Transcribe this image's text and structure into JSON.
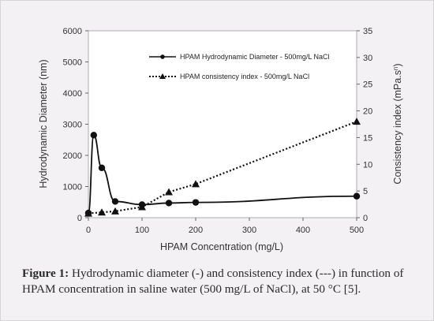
{
  "chart_data": {
    "type": "line",
    "xlabel": "HPAM Concentration (mg/L)",
    "ylabel": "Hydrodynamic Diameter (nm)",
    "y2label": "Consistency index  (mPa.s",
    "y2label_sup": "n",
    "y2label_close": ")",
    "x_ticks": [
      "0",
      "100",
      "200",
      "300",
      "400",
      "500"
    ],
    "y_ticks": [
      "0",
      "1000",
      "2000",
      "3000",
      "4000",
      "5000",
      "6000"
    ],
    "y2_ticks": [
      "0",
      "5",
      "10",
      "15",
      "20",
      "25",
      "30",
      "35"
    ],
    "ylim": [
      0,
      6000
    ],
    "y2lim": [
      0,
      35
    ],
    "x_axis_note": "x axis is categorical-like: 0,10,25,50,100,150,200,500 placed on a compressed scale",
    "legend_position": "top-right",
    "series": [
      {
        "name": "HPAM Hydrodynamic Diameter - 500mg/L NaCl",
        "axis": "left",
        "style": "solid",
        "marker": "circle",
        "points": [
          {
            "x": 0,
            "y": 150
          },
          {
            "x": 10,
            "y": 2650
          },
          {
            "x": 25,
            "y": 1600
          },
          {
            "x": 50,
            "y": 520
          },
          {
            "x": 100,
            "y": 420
          },
          {
            "x": 150,
            "y": 470
          },
          {
            "x": 200,
            "y": 490
          },
          {
            "x": 500,
            "y": 690
          }
        ]
      },
      {
        "name": "HPAM consistency index - 500mg/L NaCl",
        "axis": "right",
        "style": "dotted",
        "marker": "triangle",
        "points": [
          {
            "x": 0,
            "y": 0.8
          },
          {
            "x": 25,
            "y": 1.0
          },
          {
            "x": 50,
            "y": 1.2
          },
          {
            "x": 100,
            "y": 2.0
          },
          {
            "x": 150,
            "y": 4.8
          },
          {
            "x": 200,
            "y": 6.3
          },
          {
            "x": 500,
            "y": 18.0
          }
        ]
      }
    ]
  },
  "caption": {
    "label": "Figure 1:",
    "text": " Hydrodynamic diameter (-) and consistency index (---) in function of HPAM concentration in saline water (500 mg/L of NaCl), at 50 °C [5]."
  }
}
